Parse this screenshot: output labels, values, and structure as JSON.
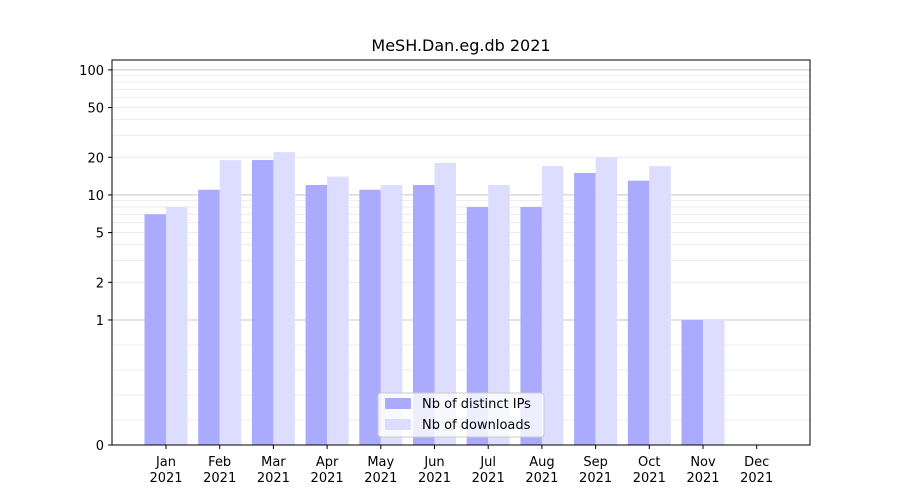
{
  "chart_data": {
    "type": "bar",
    "title": "MeSH.Dan.eg.db 2021",
    "y_scale": "symlog",
    "categories": [
      [
        "Jan",
        "2021"
      ],
      [
        "Feb",
        "2021"
      ],
      [
        "Mar",
        "2021"
      ],
      [
        "Apr",
        "2021"
      ],
      [
        "May",
        "2021"
      ],
      [
        "Jun",
        "2021"
      ],
      [
        "Jul",
        "2021"
      ],
      [
        "Aug",
        "2021"
      ],
      [
        "Sep",
        "2021"
      ],
      [
        "Oct",
        "2021"
      ],
      [
        "Nov",
        "2021"
      ],
      [
        "Dec",
        "2021"
      ]
    ],
    "series": [
      {
        "name": "Nb of distinct IPs",
        "color": "#aaaaff",
        "values": [
          7,
          11,
          19,
          12,
          11,
          12,
          8,
          8,
          15,
          13,
          1,
          0
        ]
      },
      {
        "name": "Nb of downloads",
        "color": "#ddddff",
        "values": [
          8,
          19,
          22,
          14,
          12,
          18,
          12,
          17,
          20,
          17,
          1,
          0
        ]
      }
    ],
    "ylim": [
      0,
      120
    ],
    "y_ticks": [
      0,
      1,
      2,
      5,
      10,
      20,
      50,
      100
    ],
    "legend_position": "bottom-center",
    "grid": true
  }
}
